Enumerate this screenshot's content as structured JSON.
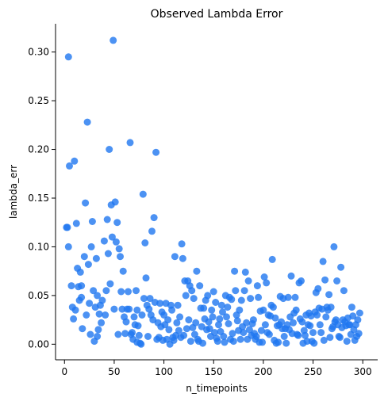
{
  "chart_data": {
    "type": "scatter",
    "title": "Observed Lambda Error",
    "xlabel": "n_timepoints",
    "ylabel": "lambda_err",
    "xlim": [
      -9,
      315
    ],
    "ylim": [
      -0.016,
      0.329
    ],
    "xticks": [
      0,
      50,
      100,
      150,
      200,
      250,
      300
    ],
    "xtick_labels": [
      "0",
      "50",
      "100",
      "150",
      "200",
      "250",
      "300"
    ],
    "yticks": [
      0.0,
      0.05,
      0.1,
      0.15,
      0.2,
      0.25,
      0.3
    ],
    "ytick_labels": [
      "0.00",
      "0.05",
      "0.10",
      "0.15",
      "0.20",
      "0.25",
      "0.30"
    ],
    "grid": false,
    "marker_color": "#1f77f0",
    "points": [
      [
        2,
        0.12
      ],
      [
        3,
        0.12
      ],
      [
        4,
        0.295
      ],
      [
        4,
        0.1
      ],
      [
        5,
        0.183
      ],
      [
        7,
        0.06
      ],
      [
        8,
        0.038
      ],
      [
        9,
        0.026
      ],
      [
        10,
        0.188
      ],
      [
        11,
        0.035
      ],
      [
        12,
        0.124
      ],
      [
        13,
        0.078
      ],
      [
        14,
        0.059
      ],
      [
        15,
        0.045
      ],
      [
        16,
        0.074
      ],
      [
        17,
        0.048
      ],
      [
        17,
        0.06
      ],
      [
        18,
        0.016
      ],
      [
        20,
        0.09
      ],
      [
        21,
        0.145
      ],
      [
        22,
        0.03
      ],
      [
        23,
        0.228
      ],
      [
        24,
        0.082
      ],
      [
        25,
        0.042
      ],
      [
        26,
        0.01
      ],
      [
        27,
        0.1
      ],
      [
        28,
        0.126
      ],
      [
        29,
        0.055
      ],
      [
        30,
        0.003
      ],
      [
        31,
        0.038
      ],
      [
        32,
        0.088
      ],
      [
        33,
        0.05
      ],
      [
        33,
        0.008
      ],
      [
        34,
        0.015
      ],
      [
        35,
        0.031
      ],
      [
        36,
        0.04
      ],
      [
        37,
        0.022
      ],
      [
        38,
        0.045
      ],
      [
        40,
        0.106
      ],
      [
        41,
        0.03
      ],
      [
        42,
        0.055
      ],
      [
        43,
        0.128
      ],
      [
        44,
        0.093
      ],
      [
        45,
        0.2
      ],
      [
        46,
        0.062
      ],
      [
        47,
        0.143
      ],
      [
        48,
        0.11
      ],
      [
        49,
        0.312
      ],
      [
        50,
        0.036
      ],
      [
        51,
        0.146
      ],
      [
        52,
        0.105
      ],
      [
        53,
        0.125
      ],
      [
        54,
        0.01
      ],
      [
        55,
        0.098
      ],
      [
        56,
        0.09
      ],
      [
        57,
        0.054
      ],
      [
        58,
        0.036
      ],
      [
        59,
        0.075
      ],
      [
        60,
        0.028
      ],
      [
        61,
        0.011
      ],
      [
        62,
        0.023
      ],
      [
        63,
        0.036
      ],
      [
        64,
        0.054
      ],
      [
        65,
        0.036
      ],
      [
        66,
        0.207
      ],
      [
        67,
        0.01
      ],
      [
        68,
        0.012
      ],
      [
        69,
        0.005
      ],
      [
        70,
        0.028
      ],
      [
        71,
        0.02
      ],
      [
        72,
        0.055
      ],
      [
        73,
        0.035
      ],
      [
        73,
        0.002
      ],
      [
        74,
        0.019
      ],
      [
        75,
        0.009
      ],
      [
        76,
        0.001
      ],
      [
        77,
        0.0
      ],
      [
        78,
        0.03
      ],
      [
        79,
        0.154
      ],
      [
        80,
        0.047
      ],
      [
        81,
        0.104
      ],
      [
        82,
        0.068
      ],
      [
        83,
        0.04
      ],
      [
        84,
        0.008
      ],
      [
        85,
        0.036
      ],
      [
        86,
        0.047
      ],
      [
        87,
        0.03
      ],
      [
        88,
        0.116
      ],
      [
        89,
        0.025
      ],
      [
        90,
        0.13
      ],
      [
        91,
        0.043
      ],
      [
        92,
        0.197
      ],
      [
        93,
        0.005
      ],
      [
        94,
        0.022
      ],
      [
        95,
        0.007
      ],
      [
        96,
        0.042
      ],
      [
        97,
        0.018
      ],
      [
        98,
        0.033
      ],
      [
        99,
        0.004
      ],
      [
        100,
        0.03
      ],
      [
        101,
        0.02
      ],
      [
        102,
        0.042
      ],
      [
        103,
        0.005
      ],
      [
        104,
        0.025
      ],
      [
        105,
        0.015
      ],
      [
        106,
        0.0
      ],
      [
        107,
        0.04
      ],
      [
        108,
        0.035
      ],
      [
        109,
        0.007
      ],
      [
        110,
        0.004
      ],
      [
        111,
        0.09
      ],
      [
        112,
        0.009
      ],
      [
        113,
        0.022
      ],
      [
        114,
        0.04
      ],
      [
        115,
        0.014
      ],
      [
        116,
        0.028
      ],
      [
        117,
        0.007
      ],
      [
        118,
        0.103
      ],
      [
        119,
        0.088
      ],
      [
        120,
        0.009
      ],
      [
        121,
        0.065
      ],
      [
        122,
        0.05
      ],
      [
        123,
        0.016
      ],
      [
        124,
        0.065
      ],
      [
        125,
        0.025
      ],
      [
        126,
        0.06
      ],
      [
        127,
        0.003
      ],
      [
        128,
        0.055
      ],
      [
        129,
        0.017
      ],
      [
        130,
        0.047
      ],
      [
        131,
        0.01
      ],
      [
        132,
        0.022
      ],
      [
        133,
        0.075
      ],
      [
        134,
        0.005
      ],
      [
        135,
        0.003
      ],
      [
        136,
        0.06
      ],
      [
        137,
        0.037
      ],
      [
        138,
        0.018
      ],
      [
        139,
        0.001
      ],
      [
        140,
        0.037
      ],
      [
        141,
        0.026
      ],
      [
        142,
        0.045
      ],
      [
        143,
        0.015
      ],
      [
        144,
        0.05
      ],
      [
        145,
        0.023
      ],
      [
        146,
        0.016
      ],
      [
        147,
        0.008
      ],
      [
        148,
        0.035
      ],
      [
        149,
        0.028
      ],
      [
        150,
        0.054
      ],
      [
        151,
        0.012
      ],
      [
        152,
        0.043
      ],
      [
        153,
        0.006
      ],
      [
        154,
        0.003
      ],
      [
        155,
        0.02
      ],
      [
        156,
        0.026
      ],
      [
        157,
        0.013
      ],
      [
        158,
        0.04
      ],
      [
        159,
        0.033
      ],
      [
        160,
        0.008
      ],
      [
        161,
        0.002
      ],
      [
        162,
        0.05
      ],
      [
        163,
        0.028
      ],
      [
        164,
        0.038
      ],
      [
        165,
        0.021
      ],
      [
        166,
        0.048
      ],
      [
        167,
        0.005
      ],
      [
        168,
        0.046
      ],
      [
        169,
        0.011
      ],
      [
        170,
        0.003
      ],
      [
        171,
        0.075
      ],
      [
        172,
        0.055
      ],
      [
        173,
        0.03
      ],
      [
        174,
        0.024
      ],
      [
        175,
        0.014
      ],
      [
        176,
        0.035
      ],
      [
        177,
        0.005
      ],
      [
        178,
        0.045
      ],
      [
        179,
        0.018
      ],
      [
        180,
        0.012
      ],
      [
        181,
        0.055
      ],
      [
        182,
        0.074
      ],
      [
        183,
        0.022
      ],
      [
        184,
        0.005
      ],
      [
        185,
        0.065
      ],
      [
        186,
        0.015
      ],
      [
        187,
        0.047
      ],
      [
        188,
        0.009
      ],
      [
        189,
        0.021
      ],
      [
        190,
        0.025
      ],
      [
        191,
        0.011
      ],
      [
        192,
        0.005
      ],
      [
        193,
        0.008
      ],
      [
        194,
        0.06
      ],
      [
        195,
        0.048
      ],
      [
        196,
        0.002
      ],
      [
        197,
        0.034
      ],
      [
        198,
        0.014
      ],
      [
        199,
        0.002
      ],
      [
        200,
        0.035
      ],
      [
        201,
        0.069
      ],
      [
        202,
        0.02
      ],
      [
        203,
        0.063
      ],
      [
        204,
        0.012
      ],
      [
        205,
        0.03
      ],
      [
        206,
        0.01
      ],
      [
        207,
        0.029
      ],
      [
        208,
        0.04
      ],
      [
        209,
        0.087
      ],
      [
        210,
        0.038
      ],
      [
        211,
        0.004
      ],
      [
        212,
        0.027
      ],
      [
        213,
        0.001
      ],
      [
        214,
        0.019
      ],
      [
        215,
        0.002
      ],
      [
        216,
        0.02
      ],
      [
        217,
        0.049
      ],
      [
        218,
        0.023
      ],
      [
        219,
        0.016
      ],
      [
        220,
        0.047
      ],
      [
        221,
        0.008
      ],
      [
        222,
        0.016
      ],
      [
        223,
        0.001
      ],
      [
        224,
        0.02
      ],
      [
        225,
        0.048
      ],
      [
        226,
        0.015
      ],
      [
        227,
        0.028
      ],
      [
        228,
        0.07
      ],
      [
        229,
        0.011
      ],
      [
        230,
        0.022
      ],
      [
        231,
        0.032
      ],
      [
        232,
        0.048
      ],
      [
        233,
        0.035
      ],
      [
        234,
        0.01
      ],
      [
        235,
        0.009
      ],
      [
        236,
        0.063
      ],
      [
        237,
        0.026
      ],
      [
        238,
        0.065
      ],
      [
        239,
        0.023
      ],
      [
        240,
        0.001
      ],
      [
        241,
        0.014
      ],
      [
        242,
        0.009
      ],
      [
        243,
        0.03
      ],
      [
        244,
        0.003
      ],
      [
        245,
        0.02
      ],
      [
        246,
        0.032
      ],
      [
        247,
        0.019
      ],
      [
        248,
        0.029
      ],
      [
        249,
        0.003
      ],
      [
        250,
        0.012
      ],
      [
        251,
        0.001
      ],
      [
        252,
        0.033
      ],
      [
        253,
        0.053
      ],
      [
        254,
        0.03
      ],
      [
        255,
        0.057
      ],
      [
        256,
        0.037
      ],
      [
        257,
        0.02
      ],
      [
        258,
        0.012
      ],
      [
        259,
        0.036
      ],
      [
        260,
        0.085
      ],
      [
        261,
        0.004
      ],
      [
        262,
        0.066
      ],
      [
        263,
        0.028
      ],
      [
        264,
        0.038
      ],
      [
        265,
        0.035
      ],
      [
        266,
        0.051
      ],
      [
        267,
        0.007
      ],
      [
        268,
        0.038
      ],
      [
        269,
        0.016
      ],
      [
        270,
        0.018
      ],
      [
        271,
        0.1
      ],
      [
        272,
        0.023
      ],
      [
        273,
        0.025
      ],
      [
        274,
        0.065
      ],
      [
        275,
        0.02
      ],
      [
        276,
        0.008
      ],
      [
        277,
        0.007
      ],
      [
        278,
        0.079
      ],
      [
        279,
        0.017
      ],
      [
        280,
        0.025
      ],
      [
        281,
        0.055
      ],
      [
        282,
        0.023
      ],
      [
        283,
        0.019
      ],
      [
        284,
        0.003
      ],
      [
        285,
        0.027
      ],
      [
        286,
        0.02
      ],
      [
        287,
        0.02
      ],
      [
        288,
        0.01
      ],
      [
        289,
        0.038
      ],
      [
        290,
        0.029
      ],
      [
        291,
        0.015
      ],
      [
        292,
        0.004
      ],
      [
        293,
        0.02
      ],
      [
        294,
        0.008
      ],
      [
        295,
        0.025
      ],
      [
        296,
        0.011
      ],
      [
        297,
        0.032
      ]
    ]
  }
}
